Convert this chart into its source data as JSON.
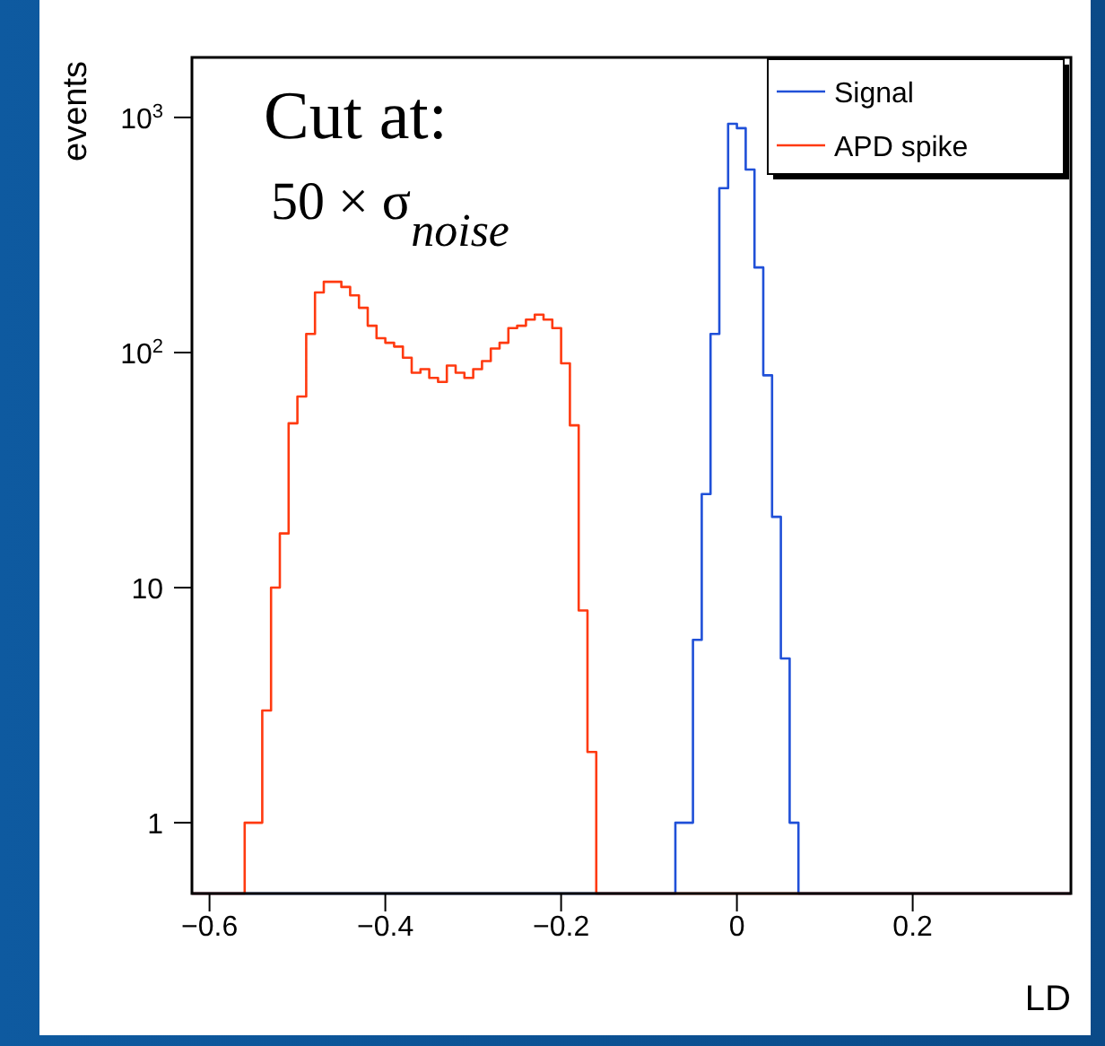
{
  "chart_data": {
    "type": "histogram",
    "xlabel": "LD",
    "ylabel": "events",
    "annotations": [
      "Cut at:",
      "50 × σ$_{noise}$"
    ],
    "bins": [
      -0.62,
      -0.61,
      -0.6,
      -0.59,
      -0.58,
      -0.57,
      -0.56,
      -0.55,
      -0.54,
      -0.53,
      -0.52,
      -0.51,
      -0.5,
      -0.49,
      -0.48,
      -0.47,
      -0.46,
      -0.45,
      -0.44,
      -0.43,
      -0.42,
      -0.41,
      -0.4,
      -0.39,
      -0.38,
      -0.37,
      -0.36,
      -0.35,
      -0.34,
      -0.33,
      -0.32,
      -0.31,
      -0.3,
      -0.29,
      -0.28,
      -0.27,
      -0.26,
      -0.25,
      -0.24,
      -0.23,
      -0.22,
      -0.21,
      -0.2,
      -0.19,
      -0.18,
      -0.17,
      -0.16,
      -0.15,
      -0.14,
      -0.13,
      -0.12,
      -0.11,
      -0.1,
      -0.09,
      -0.08,
      -0.07,
      -0.06,
      -0.05,
      -0.04,
      -0.03,
      -0.02,
      -0.01,
      0,
      0.01,
      0.02,
      0.03,
      0.04,
      0.05,
      0.06,
      0.07,
      0.08,
      0.09,
      0.1,
      0.11,
      0.12,
      0.13,
      0.14,
      0.15,
      0.16,
      0.17,
      0.18,
      0.19,
      0.2,
      0.21,
      0.22,
      0.23,
      0.24,
      0.25,
      0.26,
      0.27,
      0.28,
      0.29,
      0.3,
      0.31,
      0.32,
      0.33,
      0.34,
      0.35,
      0.36,
      0.37,
      0.38
    ],
    "series": [
      {
        "name": "Signal",
        "color": "#2050d8",
        "values": [
          null,
          null,
          null,
          null,
          null,
          null,
          null,
          null,
          null,
          null,
          null,
          null,
          null,
          null,
          null,
          null,
          null,
          null,
          null,
          null,
          null,
          null,
          null,
          null,
          null,
          null,
          null,
          null,
          null,
          null,
          null,
          null,
          null,
          null,
          null,
          null,
          null,
          null,
          null,
          null,
          null,
          null,
          null,
          null,
          null,
          null,
          null,
          null,
          null,
          null,
          null,
          null,
          null,
          null,
          null,
          1,
          1,
          6,
          25,
          120,
          500,
          940,
          900,
          600,
          230,
          80,
          20,
          5,
          1,
          null,
          null,
          null,
          null,
          null,
          null,
          null,
          null,
          null,
          null,
          null,
          null,
          null,
          null,
          null,
          null,
          null,
          null,
          null,
          null,
          null,
          null,
          null,
          null,
          null,
          null,
          null,
          null,
          null,
          null,
          null
        ]
      },
      {
        "name": "APD spike",
        "color": "#ff3a10",
        "values": [
          null,
          null,
          null,
          null,
          null,
          null,
          1,
          1,
          3,
          10,
          17,
          50,
          65,
          120,
          180,
          200,
          200,
          190,
          175,
          155,
          130,
          115,
          110,
          106,
          95,
          82,
          85,
          78,
          75,
          88,
          82,
          78,
          85,
          92,
          104,
          110,
          127,
          130,
          138,
          145,
          138,
          127,
          90,
          49,
          8,
          2,
          null,
          null,
          null,
          null,
          null,
          null,
          null,
          null,
          null,
          null,
          null,
          null,
          null,
          null,
          null,
          null,
          null,
          null,
          null,
          null,
          null,
          null,
          null,
          null,
          null,
          null,
          null,
          null,
          null,
          null,
          null,
          null,
          null,
          null,
          null,
          null,
          null,
          null,
          null,
          null,
          null,
          null,
          null,
          null,
          null,
          null,
          null,
          null,
          null,
          null,
          null,
          null,
          null,
          null
        ]
      }
    ],
    "xlim": [
      -0.62,
      0.38
    ],
    "xticks": [
      {
        "value": -0.6,
        "label": "−0.6"
      },
      {
        "value": -0.4,
        "label": "−0.4"
      },
      {
        "value": -0.2,
        "label": "−0.2"
      },
      0,
      0.2
    ],
    "ylim": [
      0.5,
      1800
    ],
    "log": true,
    "yticks": [
      1,
      10,
      {
        "value": 100,
        "label": "10$^{2}$"
      },
      {
        "value": 1000,
        "label": "10$^{3}$"
      }
    ],
    "legend": "top right"
  }
}
